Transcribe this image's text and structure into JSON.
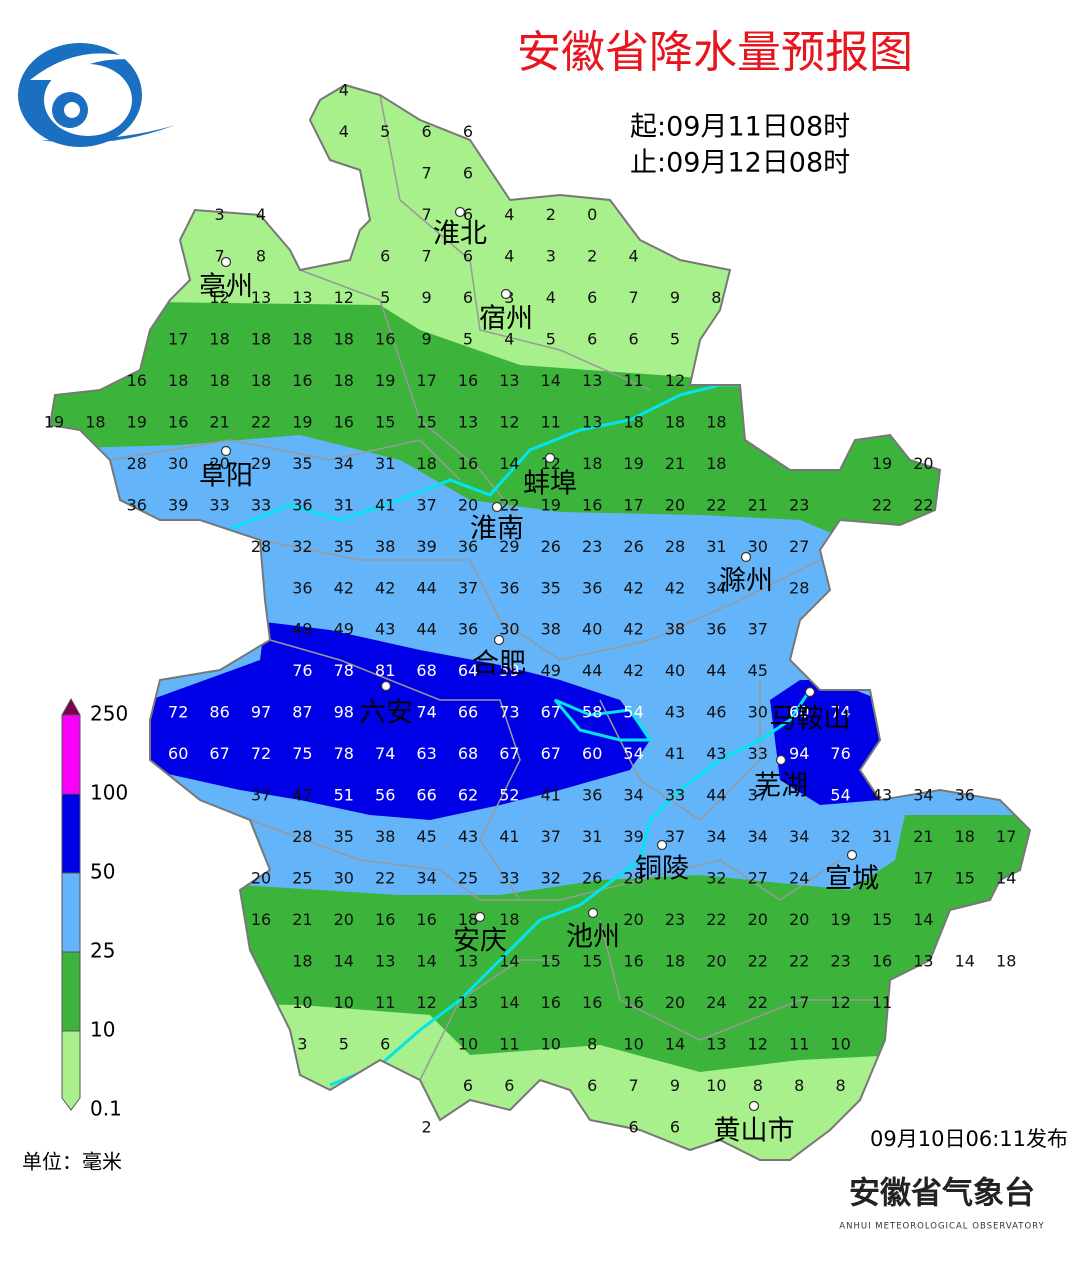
{
  "title": "安徽省降水量预报图",
  "period": {
    "start": "起:09月11日08时",
    "end": "止:09月12日08时"
  },
  "unit": "单位：毫米",
  "issued": "09月10日06:11发布",
  "publisher": {
    "name": "安徽省气象台",
    "name_en": "ANHUI METEOROLOGICAL OBSERVATORY"
  },
  "legend": {
    "levels": [
      0.1,
      10,
      25,
      50,
      100,
      250
    ],
    "colors": [
      "#a8f08c",
      "#3cb43c",
      "#64b4fa",
      "#0000e6",
      "#fa00fa"
    ],
    "over_color": "#7d0050"
  },
  "cities": [
    "淮北",
    "亳州",
    "宿州",
    "阜阳",
    "蚌埠",
    "淮南",
    "滁州",
    "合肥",
    "六安",
    "马鞍山",
    "芜湖",
    "铜陵",
    "宣城",
    "安庆",
    "池州",
    "黄山市"
  ],
  "grid": [
    [
      null,
      null,
      null,
      null,
      null,
      null,
      null,
      4
    ],
    [
      null,
      null,
      null,
      null,
      null,
      null,
      null,
      4,
      5,
      6,
      6
    ],
    [
      null,
      null,
      null,
      null,
      null,
      null,
      null,
      null,
      null,
      7,
      6
    ],
    [
      null,
      null,
      null,
      null,
      3,
      4,
      null,
      null,
      null,
      7,
      6,
      4,
      2,
      0
    ],
    [
      null,
      null,
      null,
      null,
      7,
      8,
      null,
      null,
      6,
      7,
      6,
      4,
      3,
      2,
      4
    ],
    [
      null,
      null,
      null,
      null,
      12,
      13,
      13,
      12,
      5,
      9,
      6,
      3,
      4,
      6,
      7,
      9,
      8
    ],
    [
      null,
      null,
      null,
      17,
      18,
      18,
      18,
      18,
      16,
      9,
      5,
      4,
      5,
      6,
      6,
      5
    ],
    [
      null,
      null,
      16,
      18,
      18,
      18,
      16,
      18,
      19,
      17,
      16,
      13,
      14,
      13,
      11,
      12
    ],
    [
      19,
      18,
      19,
      16,
      21,
      22,
      19,
      16,
      15,
      15,
      13,
      12,
      11,
      13,
      18,
      18,
      18
    ],
    [
      null,
      null,
      28,
      30,
      20,
      29,
      35,
      34,
      31,
      18,
      16,
      14,
      12,
      18,
      19,
      21,
      18,
      null,
      null,
      null,
      19,
      20
    ],
    [
      null,
      null,
      36,
      39,
      33,
      33,
      36,
      31,
      41,
      37,
      20,
      22,
      19,
      16,
      17,
      20,
      22,
      21,
      23,
      null,
      22,
      22
    ],
    [
      null,
      null,
      null,
      null,
      null,
      28,
      32,
      35,
      38,
      39,
      36,
      29,
      26,
      23,
      26,
      28,
      31,
      30,
      27
    ],
    [
      null,
      null,
      null,
      null,
      null,
      null,
      36,
      42,
      42,
      44,
      37,
      36,
      35,
      36,
      42,
      42,
      34,
      null,
      28
    ],
    [
      null,
      null,
      null,
      null,
      null,
      null,
      49,
      49,
      43,
      44,
      36,
      30,
      38,
      40,
      42,
      38,
      36,
      37
    ],
    [
      null,
      null,
      null,
      null,
      null,
      null,
      76,
      78,
      81,
      68,
      64,
      59,
      49,
      44,
      42,
      40,
      44,
      45
    ],
    [
      null,
      null,
      null,
      72,
      86,
      97,
      87,
      98,
      null,
      74,
      66,
      73,
      67,
      58,
      54,
      43,
      46,
      30,
      60,
      74
    ],
    [
      null,
      null,
      null,
      60,
      67,
      72,
      75,
      78,
      74,
      63,
      68,
      67,
      67,
      60,
      54,
      41,
      43,
      33,
      94,
      76
    ],
    [
      null,
      null,
      null,
      null,
      null,
      37,
      47,
      51,
      56,
      66,
      62,
      52,
      41,
      36,
      34,
      33,
      44,
      37,
      null,
      54,
      43,
      34,
      36
    ],
    [
      null,
      null,
      null,
      null,
      null,
      null,
      28,
      35,
      38,
      45,
      43,
      41,
      37,
      31,
      39,
      37,
      34,
      34,
      34,
      32,
      31,
      21,
      18,
      17
    ],
    [
      null,
      null,
      null,
      null,
      null,
      20,
      25,
      30,
      22,
      34,
      25,
      33,
      32,
      26,
      28,
      null,
      32,
      27,
      24,
      null,
      null,
      17,
      15,
      14
    ],
    [
      null,
      null,
      null,
      null,
      null,
      16,
      21,
      20,
      16,
      16,
      18,
      18,
      null,
      null,
      20,
      23,
      22,
      20,
      20,
      19,
      15,
      14
    ],
    [
      null,
      null,
      null,
      null,
      null,
      null,
      18,
      14,
      13,
      14,
      13,
      14,
      15,
      15,
      16,
      18,
      20,
      22,
      22,
      23,
      16,
      13,
      14,
      18
    ],
    [
      null,
      null,
      null,
      null,
      null,
      null,
      10,
      10,
      11,
      12,
      13,
      14,
      16,
      16,
      16,
      20,
      24,
      22,
      17,
      12,
      11
    ],
    [
      null,
      null,
      null,
      null,
      null,
      null,
      3,
      5,
      6,
      null,
      10,
      11,
      10,
      8,
      10,
      14,
      13,
      12,
      11,
      10
    ],
    [
      null,
      null,
      null,
      null,
      null,
      null,
      null,
      null,
      null,
      null,
      6,
      6,
      null,
      6,
      7,
      9,
      10,
      8,
      8,
      8
    ],
    [
      null,
      null,
      null,
      null,
      null,
      null,
      null,
      null,
      null,
      2,
      null,
      null,
      null,
      null,
      6,
      6
    ]
  ]
}
